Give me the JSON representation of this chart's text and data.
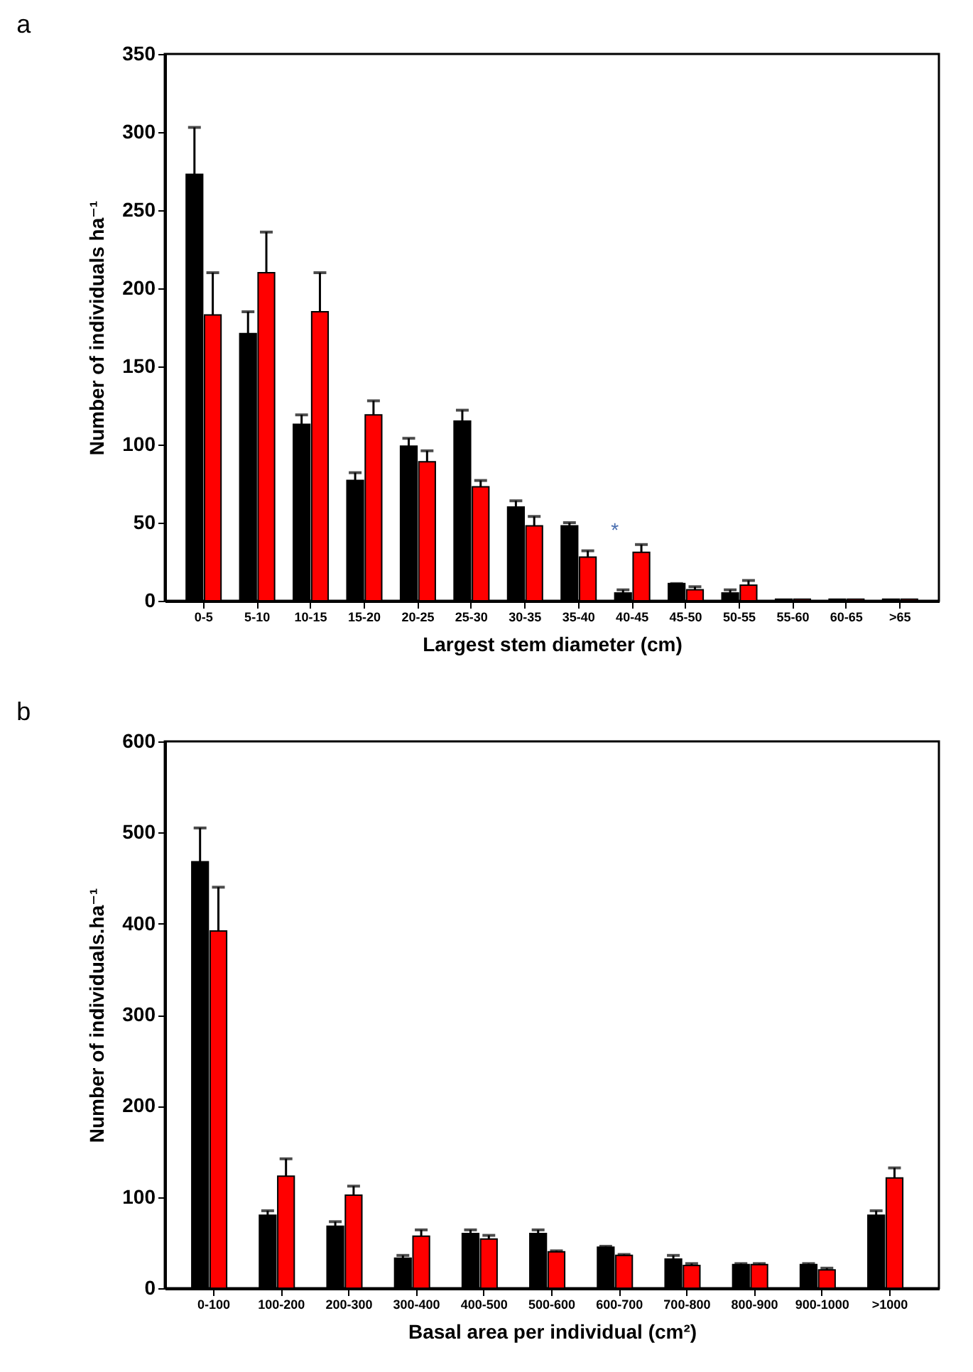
{
  "chart_data": [
    {
      "type": "bar",
      "title": "a",
      "xlabel": "Largest stem diameter (cm)",
      "ylabel": "Number of individuals ha⁻¹",
      "categories": [
        "0-5",
        "5-10",
        "10-15",
        "15-20",
        "20-25",
        "25-30",
        "30-35",
        "35-40",
        "40-45",
        "45-50",
        "50-55",
        "55-60",
        "60-65",
        ">65"
      ],
      "series": [
        {
          "color": "#000000",
          "values": [
            273,
            171,
            113,
            77,
            99,
            115,
            60,
            48,
            5,
            11,
            5,
            1,
            1,
            1
          ],
          "errors": [
            [
              273,
              303
            ],
            [
              171,
              185
            ],
            [
              113,
              119
            ],
            [
              77,
              82
            ],
            [
              99,
              104
            ],
            [
              115,
              122
            ],
            [
              60,
              64
            ],
            [
              48,
              50
            ],
            [
              5,
              7
            ],
            [
              11,
              11
            ],
            [
              5,
              7
            ],
            null,
            null,
            null
          ]
        },
        {
          "color": "#ff0000",
          "values": [
            183,
            210,
            185,
            119,
            89,
            73,
            48,
            28,
            31,
            7,
            10,
            1,
            1,
            1
          ],
          "errors": [
            [
              183,
              210
            ],
            [
              210,
              236
            ],
            [
              185,
              210
            ],
            [
              119,
              128
            ],
            [
              89,
              96
            ],
            [
              73,
              77
            ],
            [
              48,
              54
            ],
            [
              28,
              32
            ],
            [
              31,
              36
            ],
            [
              7,
              9
            ],
            [
              10,
              13
            ],
            null,
            null,
            null
          ]
        }
      ],
      "annotations": [
        {
          "text": "*",
          "x": "40-45",
          "y": 31
        }
      ],
      "ylim": [
        0,
        350
      ],
      "yticks": [
        0,
        50,
        100,
        150,
        200,
        250,
        300,
        350
      ],
      "grid": false
    },
    {
      "type": "bar",
      "title": "b",
      "xlabel": "Basal area per individual (cm²)",
      "ylabel": "Number of individuals.ha⁻¹",
      "categories": [
        "0-100",
        "100-200",
        "200-300",
        "300-400",
        "400-500",
        "500-600",
        "600-700",
        "700-800",
        "800-900",
        "900-1000",
        ">1000"
      ],
      "series": [
        {
          "color": "#000000",
          "values": [
            468,
            80,
            68,
            33,
            60,
            60,
            45,
            32,
            26,
            26,
            80
          ],
          "errors": [
            [
              468,
              505
            ],
            [
              80,
              85
            ],
            [
              68,
              73
            ],
            [
              33,
              36
            ],
            [
              60,
              64
            ],
            [
              60,
              64
            ],
            [
              45,
              46
            ],
            [
              32,
              36
            ],
            [
              26,
              27
            ],
            [
              26,
              27
            ],
            [
              80,
              85
            ]
          ]
        },
        {
          "color": "#ff0000",
          "values": [
            392,
            123,
            102,
            57,
            54,
            40,
            36,
            25,
            26,
            20,
            121
          ],
          "errors": [
            [
              392,
              440
            ],
            [
              123,
              142
            ],
            [
              102,
              112
            ],
            [
              57,
              64
            ],
            [
              54,
              58
            ],
            [
              40,
              41
            ],
            [
              36,
              37
            ],
            [
              25,
              27
            ],
            [
              26,
              27
            ],
            [
              20,
              22
            ],
            [
              121,
              132
            ]
          ]
        }
      ],
      "ylim": [
        0,
        600
      ],
      "yticks": [
        0,
        100,
        200,
        300,
        400,
        500,
        600
      ],
      "grid": false
    }
  ]
}
